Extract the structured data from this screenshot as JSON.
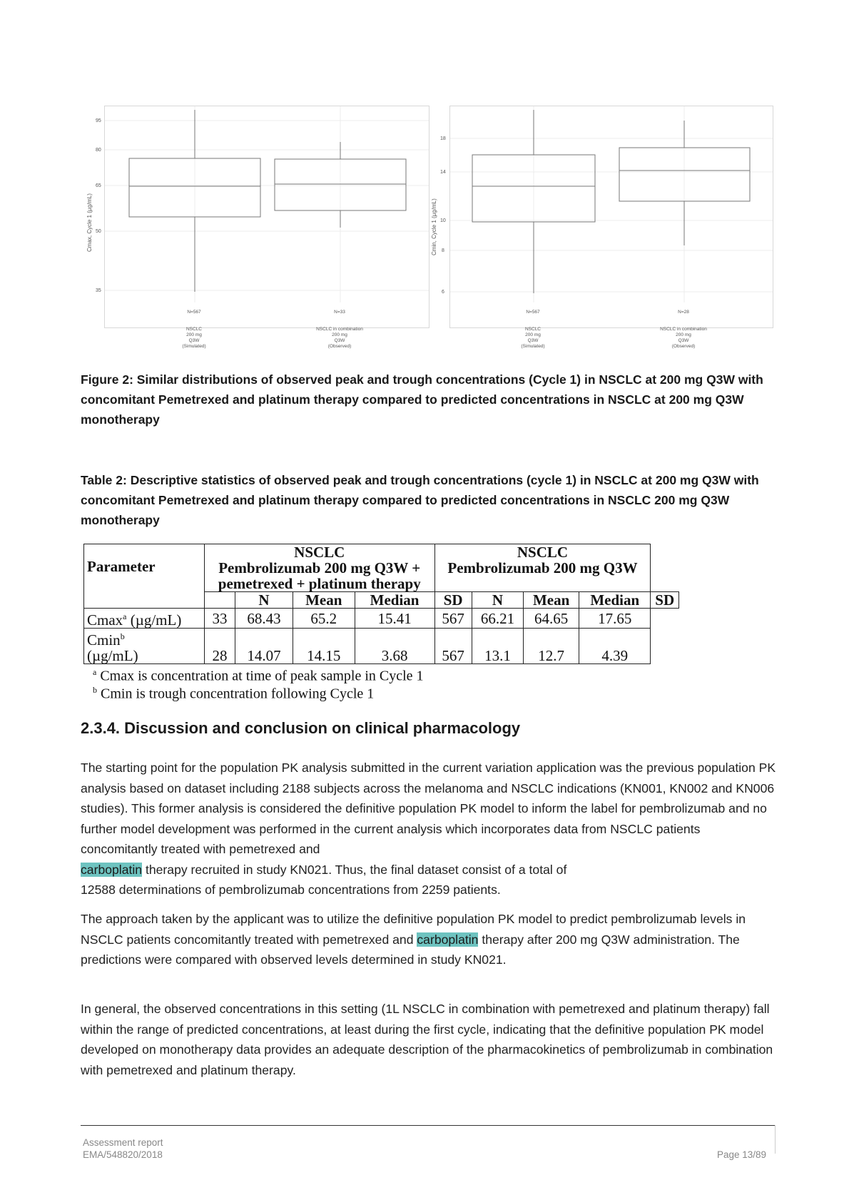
{
  "figure": {
    "left_panel": {
      "ylabel": "Cmax, Cycle 1 (µg/mL)",
      "yticks": [
        "95",
        "80",
        "65",
        "50",
        "35"
      ],
      "groups": [
        {
          "n": "N=567",
          "label": [
            "NSCLC",
            "200 mg",
            "Q3W",
            "(Simulated)"
          ]
        },
        {
          "n": "N=33",
          "label": [
            "NSCLC in combination",
            "200 mg",
            "Q3W",
            "(Observed)"
          ]
        }
      ]
    },
    "right_panel": {
      "ylabel": "Cmin, Cycle 1 (µg/mL)",
      "yticks": [
        "18",
        "14",
        "10",
        "8",
        "6"
      ],
      "groups": [
        {
          "n": "N=567",
          "label": [
            "NSCLC",
            "200 mg",
            "Q3W",
            "(Simulated)"
          ]
        },
        {
          "n": "N=28",
          "label": [
            "NSCLC in combination",
            "200 mg",
            "Q3W",
            "(Observed)"
          ]
        }
      ]
    },
    "caption": "Figure 2: Similar distributions of observed peak and trough concentrations (Cycle 1) in NSCLC at 200 mg Q3W with concomitant Pemetrexed and platinum therapy compared to predicted concentrations in NSCLC at 200 mg Q3W monotherapy"
  },
  "table": {
    "caption": "Table 2: Descriptive statistics of observed peak and trough concentrations (cycle 1) in NSCLC at 200 mg Q3W with concomitant Pemetrexed and platinum therapy compared to predicted concentrations in NSCLC 200 mg Q3W monotherapy",
    "param_header": "Parameter",
    "group1": {
      "title": "NSCLC",
      "line2": "Pembrolizumab 200 mg Q3W +",
      "line3": "pemetrexed + platinum therapy"
    },
    "group2": {
      "title": "NSCLC",
      "line2": "Pembrolizumab 200 mg Q3W"
    },
    "stat_headers": [
      "N",
      "Mean",
      "Median",
      "SD",
      "N",
      "Mean",
      "Median",
      "SD"
    ],
    "rows": [
      {
        "param": "Cmax",
        "sup": "a",
        "unit": " (µg/mL)",
        "values": [
          "33",
          "68.43",
          "65.2",
          "15.41",
          "567",
          "66.21",
          "64.65",
          "17.65"
        ]
      },
      {
        "param": "Cmin",
        "sup": "b",
        "unit": "(µg/mL)",
        "values": [
          "28",
          "14.07",
          "14.15",
          "3.68",
          "567",
          "13.1",
          "12.7",
          "4.39"
        ]
      }
    ],
    "footnotes": [
      {
        "sup": "a",
        "text": " Cmax is concentration at time of peak sample in Cycle 1"
      },
      {
        "sup": "b",
        "text": " Cmin is trough concentration following Cycle 1"
      }
    ]
  },
  "section": {
    "heading": "2.3.4.  Discussion and conclusion on clinical pharmacology",
    "p1_a": "The starting point for the population PK analysis submitted in the current variation application was the previous population PK analysis based on dataset including 2188 subjects across the melanoma and NSCLC indications (KN001, KN002 and KN006 studies). This former analysis is considered the definitive population PK model to inform the label for pembrolizumab and no further model development was performed in the current analysis which incorporates data from NSCLC patients concomitantly treated with pemetrexed and",
    "p1_hl": "carboplatin",
    "p1_b": " therapy recruited in study KN021. Thus, the final dataset consist of a total of",
    "p1_c": "12588 determinations of pembrolizumab concentrations from 2259 patients.",
    "p2_a": "The approach taken by the applicant was to utilize the definitive population PK model to predict pembrolizumab levels in NSCLC patients concomitantly treated with pemetrexed and ",
    "p2_hl": "carboplatin",
    "p2_b": " therapy after 200 mg Q3W administration. The predictions were compared with observed levels determined in study KN021.",
    "p3": "In general, the observed concentrations in this setting (1L NSCLC in combination with pemetrexed and platinum therapy) fall within the range of predicted concentrations, at least during the first cycle, indicating that the definitive population PK model developed on monotherapy data provides an adequate description of the pharmacokinetics of pembrolizumab in combination with pemetrexed and platinum therapy."
  },
  "footer": {
    "line1": "Assessment report",
    "line2": "EMA/548820/2018",
    "page": "Page 13/89"
  }
}
